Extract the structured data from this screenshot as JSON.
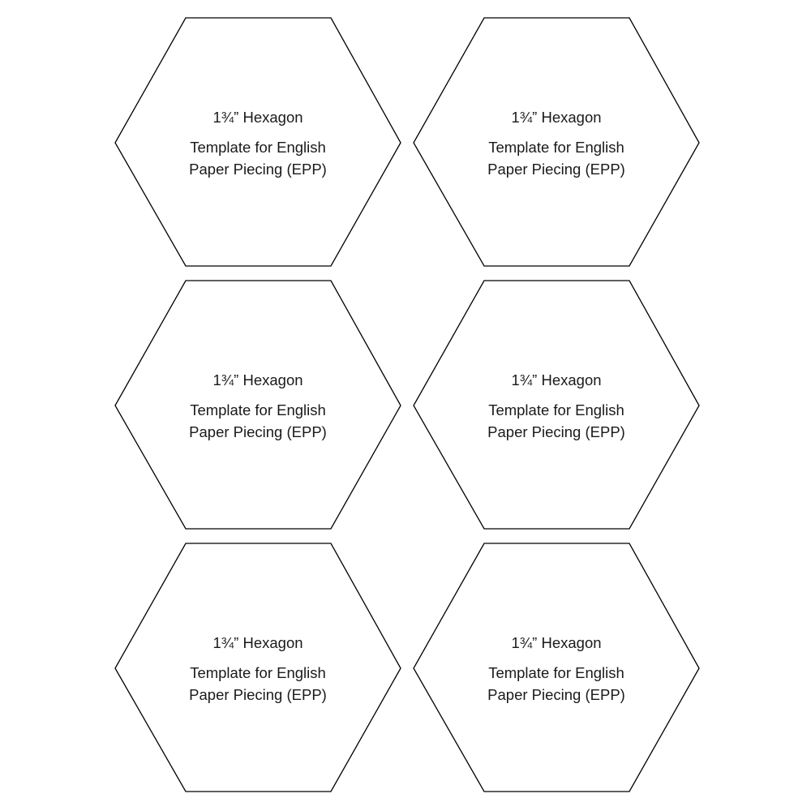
{
  "templates": [
    {
      "title": "1¾” Hexagon",
      "line1": "Template for English",
      "line2": "Paper Piecing (EPP)"
    },
    {
      "title": "1¾” Hexagon",
      "line1": "Template for English",
      "line2": "Paper Piecing (EPP)"
    },
    {
      "title": "1¾” Hexagon",
      "line1": "Template for English",
      "line2": "Paper Piecing (EPP)"
    },
    {
      "title": "1¾” Hexagon",
      "line1": "Template for English",
      "line2": "Paper Piecing (EPP)"
    },
    {
      "title": "1¾” Hexagon",
      "line1": "Template for English",
      "line2": "Paper Piecing (EPP)"
    },
    {
      "title": "1¾” Hexagon",
      "line1": "Template for English",
      "line2": "Paper Piecing (EPP)"
    }
  ],
  "colors": {
    "outline": "#000000",
    "text": "#1a1a1a",
    "background": "#ffffff"
  }
}
